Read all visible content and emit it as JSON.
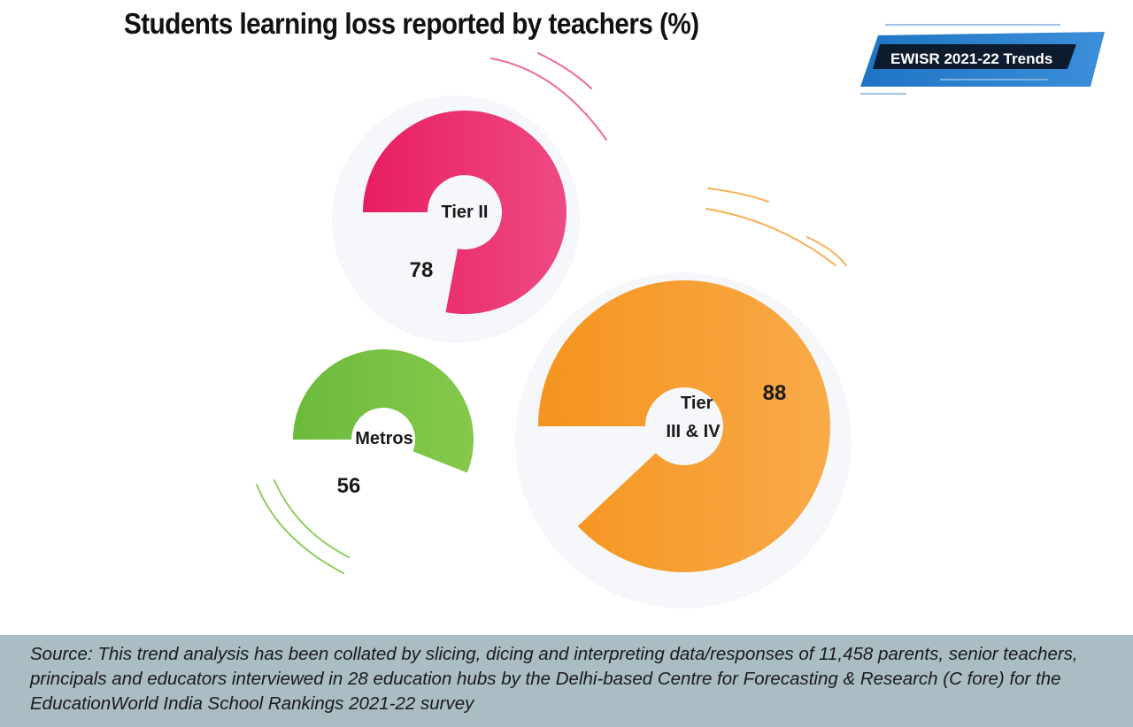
{
  "header": {
    "title": "Students learning loss reported by teachers (%)",
    "badge_label": "EWISR 2021-22 Trends"
  },
  "chart_data": {
    "type": "pie",
    "title": "Students learning loss reported by teachers (%)",
    "unit": "%",
    "categories": [
      "Tier II",
      "Metros",
      "Tier III & IV"
    ],
    "values": [
      78,
      56,
      88
    ],
    "colors": {
      "Tier II": "#e8246a",
      "Metros": "#78c043",
      "Tier III & IV": "#f59a28"
    },
    "legend": "none"
  },
  "footer": {
    "source": "Source: This trend analysis has been collated by slicing, dicing and interpreting data/responses of 11,458 parents, senior teachers, principals and educators interviewed in 28 education hubs by the Delhi-based Centre for Forecasting & Research (C fore) for the EducationWorld India School Rankings 2021-22 survey"
  }
}
